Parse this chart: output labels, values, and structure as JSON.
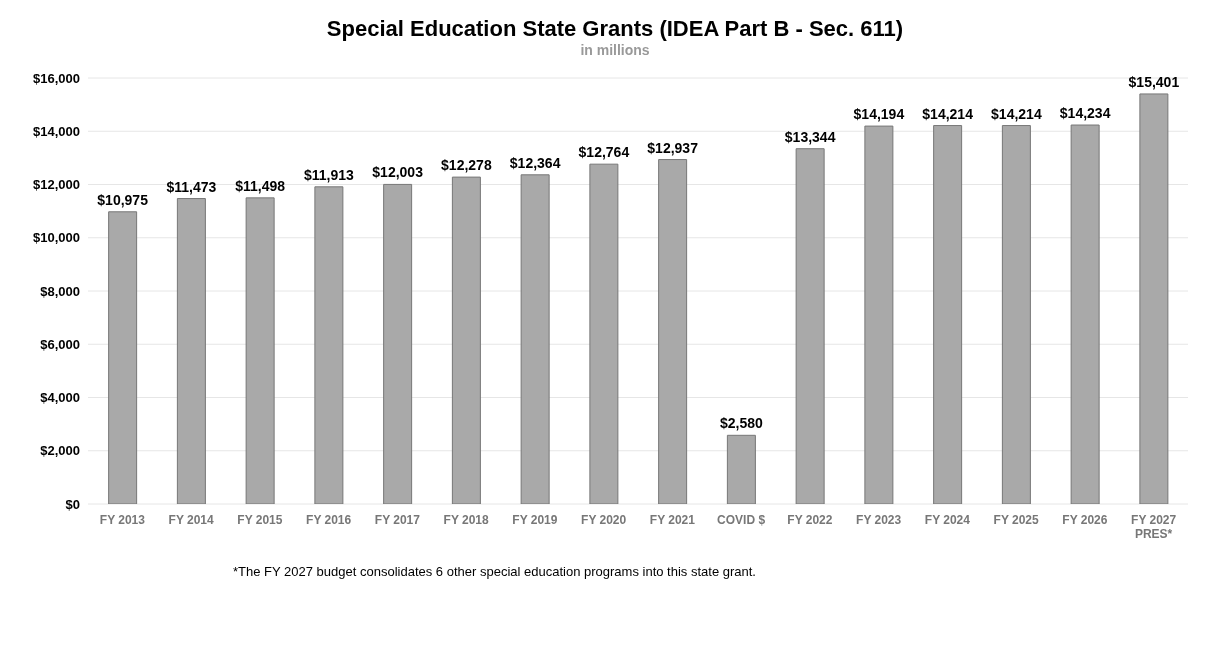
{
  "chart_data": {
    "type": "bar",
    "title": "Special Education State Grants (IDEA Part B - Sec. 611)",
    "subtitle": "in millions",
    "categories": [
      "FY 2013",
      "FY 2014",
      "FY 2015",
      "FY 2016",
      "FY 2017",
      "FY 2018",
      "FY 2019",
      "FY 2020",
      "FY 2021",
      "COVID $",
      "FY 2022",
      "FY 2023",
      "FY 2024",
      "FY 2025",
      "FY 2026",
      "FY 2027 PRES*"
    ],
    "values": [
      10975,
      11473,
      11498,
      11913,
      12003,
      12278,
      12364,
      12764,
      12937,
      2580,
      13344,
      14194,
      14214,
      14214,
      14234,
      15401
    ],
    "value_labels": [
      "$10,975",
      "$11,473",
      "$11,498",
      "$11,913",
      "$12,003",
      "$12,278",
      "$12,364",
      "$12,764",
      "$12,937",
      "$2,580",
      "$13,344",
      "$14,194",
      "$14,214",
      "$14,214",
      "$14,234",
      "$15,401"
    ],
    "color": "#a9a9a9",
    "ylim": [
      0,
      16000
    ],
    "yticks": [
      {
        "value": 0,
        "label": "$0"
      },
      {
        "value": 2000,
        "label": "$2,000"
      },
      {
        "value": 4000,
        "label": "$4,000"
      },
      {
        "value": 6000,
        "label": "$6,000"
      },
      {
        "value": 8000,
        "label": "$8,000"
      },
      {
        "value": 10000,
        "label": "$10,000"
      },
      {
        "value": 12000,
        "label": "$12,000"
      },
      {
        "value": 14000,
        "label": "$14,000"
      },
      {
        "value": 16000,
        "label": "$16,000"
      }
    ],
    "grid": "y",
    "annotations": [
      "*The FY 2027 budget consolidates 6 other special education programs into this state grant."
    ]
  }
}
